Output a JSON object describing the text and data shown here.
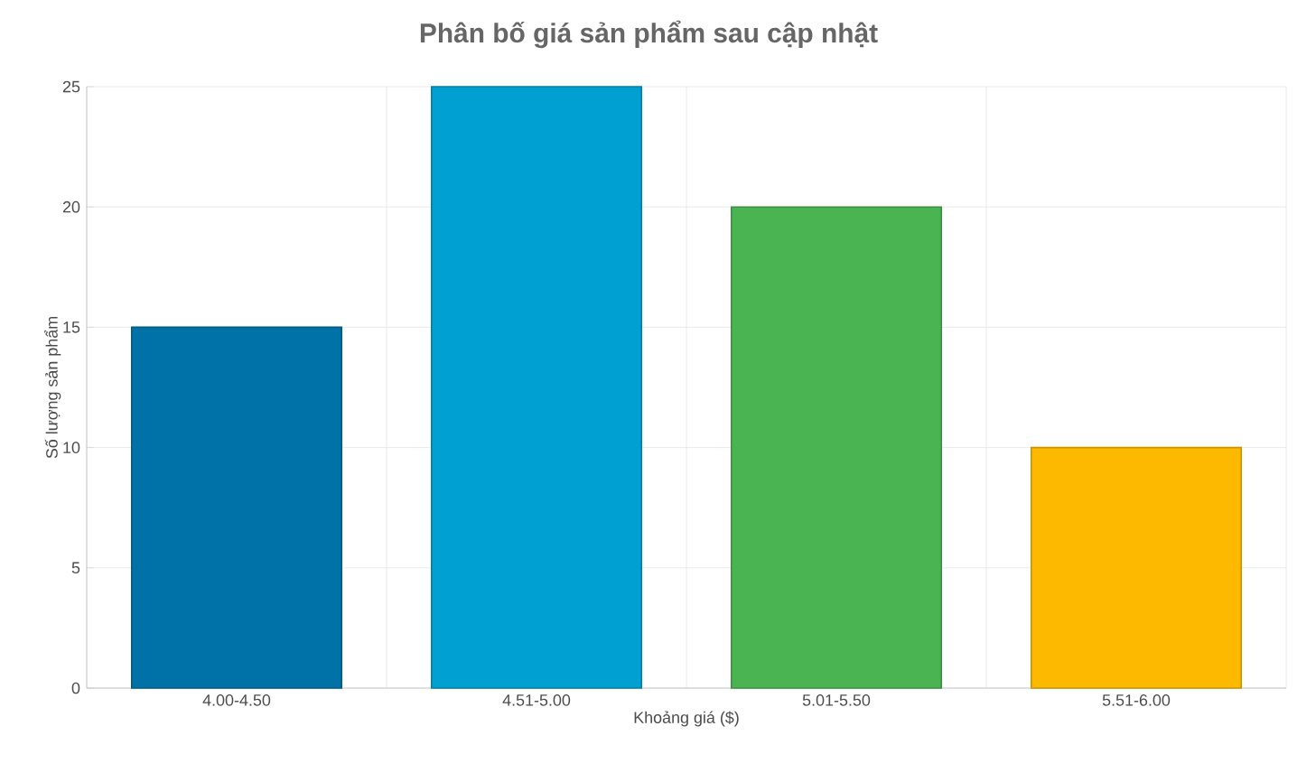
{
  "chart_data": {
    "type": "bar",
    "title": "Phân bố giá sản phẩm sau cập nhật",
    "xlabel": "Khoảng giá ($)",
    "ylabel": "Số lượng sản phẩm",
    "categories": [
      "4.00-4.50",
      "4.51-5.00",
      "5.01-5.50",
      "5.51-6.00"
    ],
    "values": [
      15,
      25,
      20,
      10
    ],
    "colors": [
      "#0072a8",
      "#00a0d2",
      "#4ab452",
      "#fdb900"
    ],
    "ylim": [
      0,
      25
    ],
    "yticks": [
      0,
      5,
      10,
      15,
      20,
      25
    ],
    "grid": true
  }
}
